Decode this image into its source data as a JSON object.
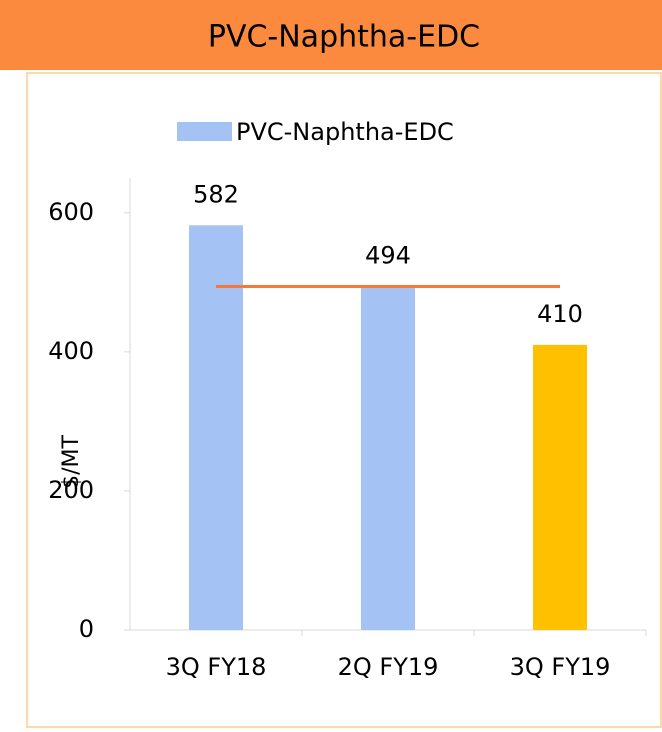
{
  "chart_data": {
    "type": "bar",
    "title": "PVC-Naphtha-EDC",
    "y_label": "$/MT",
    "categories": [
      "3Q FY18",
      "2Q FY19",
      "3Q FY19"
    ],
    "series": [
      {
        "name": "PVC-Naphtha-EDC",
        "color": "#a4c2f4",
        "values": [
          582,
          494,
          410
        ],
        "colors": [
          "#a4c2f4",
          "#a4c2f4",
          "#ffc000"
        ]
      }
    ],
    "reference_line": {
      "value": 494,
      "color": "#f4793b"
    },
    "ylim": [
      0,
      650
    ],
    "yticks": [
      0,
      200,
      400,
      600
    ],
    "grid": false,
    "legend": "top"
  }
}
